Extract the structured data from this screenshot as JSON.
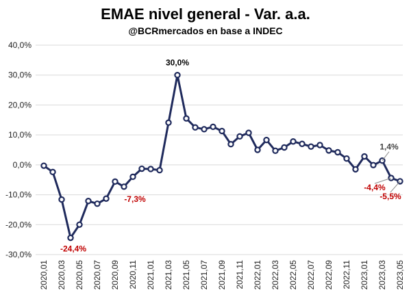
{
  "chart_data": {
    "type": "line",
    "title": "EMAE nivel general - Var. a.a.",
    "subtitle": "@BCRmercados en base a INDEC",
    "xlabel": "",
    "ylabel": "",
    "ylim": [
      -30,
      40
    ],
    "y_ticks": [
      "40,0%",
      "30,0%",
      "20,0%",
      "10,0%",
      "0,0%",
      "-10,0%",
      "-20,0%",
      "-30,0%"
    ],
    "y_tick_values": [
      40,
      30,
      20,
      10,
      0,
      -10,
      -20,
      -30
    ],
    "x_tick_labels": [
      "2020,01",
      "2020,03",
      "2020,05",
      "2020,07",
      "2020,09",
      "2020,11",
      "2021,01",
      "2021,03",
      "2021,05",
      "2021,07",
      "2021,09",
      "2021,11",
      "2022,01",
      "2022,03",
      "2022,05",
      "2022,07",
      "2022,09",
      "2022,11",
      "2023,01",
      "2023,03",
      "2023,05"
    ],
    "grid": true,
    "legend": "none",
    "colors": {
      "line": "#1f2a5c",
      "marker_fill": "#ffffff",
      "annot_neg": "#c00000",
      "annot_pos": "#000000",
      "annot_gray": "#444444",
      "grid": "#d9d9d9"
    },
    "series": [
      {
        "x": [
          "2020,01",
          "2020,02",
          "2020,03",
          "2020,04",
          "2020,05",
          "2020,06",
          "2020,07",
          "2020,08",
          "2020,09",
          "2020,10",
          "2020,11",
          "2020,12",
          "2021,01",
          "2021,02",
          "2021,03",
          "2021,04",
          "2021,05",
          "2021,06",
          "2021,07",
          "2021,08",
          "2021,09",
          "2021,10",
          "2021,11",
          "2021,12",
          "2022,01",
          "2022,02",
          "2022,03",
          "2022,04",
          "2022,05",
          "2022,06",
          "2022,07",
          "2022,08",
          "2022,09",
          "2022,10",
          "2022,11",
          "2022,12",
          "2023,01",
          "2023,02",
          "2023,03",
          "2023,04",
          "2023,05"
        ],
        "values": [
          -0.3,
          -2.4,
          -11.6,
          -24.4,
          -20.0,
          -12.1,
          -13.0,
          -11.3,
          -5.6,
          -7.3,
          -4.0,
          -1.3,
          -1.4,
          -1.8,
          14.1,
          30.0,
          15.5,
          12.5,
          11.9,
          12.7,
          11.3,
          6.9,
          9.5,
          10.7,
          5.0,
          8.3,
          4.7,
          5.8,
          7.8,
          7.0,
          6.1,
          6.6,
          4.8,
          4.2,
          2.1,
          -1.5,
          2.8,
          -0.1,
          1.4,
          -4.4,
          -5.5
        ]
      }
    ],
    "annotations": [
      {
        "label": "30,0%",
        "x": "2021,04",
        "color": "annot_pos"
      },
      {
        "label": "-24,4%",
        "x": "2020,04",
        "color": "annot_neg"
      },
      {
        "label": "-7,3%",
        "x": "2020,10",
        "color": "annot_neg"
      },
      {
        "label": "1,4%",
        "x": "2023,03",
        "color": "annot_gray"
      },
      {
        "label": "-4,4%",
        "x": "2023,04",
        "color": "annot_neg"
      },
      {
        "label": "-5,5%",
        "x": "2023,05",
        "color": "annot_neg"
      }
    ]
  }
}
